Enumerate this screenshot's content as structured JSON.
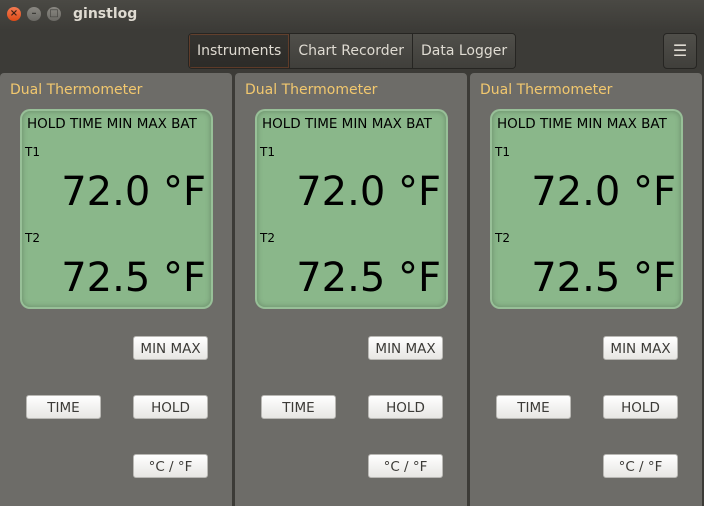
{
  "window": {
    "title": "ginstlog",
    "close_glyph": "×",
    "min_glyph": "–",
    "max_glyph": "□"
  },
  "tabs": [
    {
      "label": "Instruments",
      "active": true
    },
    {
      "label": "Chart Recorder",
      "active": false
    },
    {
      "label": "Data Logger",
      "active": false
    }
  ],
  "menu_icon": "hamburger-menu-icon",
  "menu_glyph": "☰",
  "panels": [
    {
      "title": "Dual Thermometer",
      "flags": "HOLD TIME MIN MAX BAT",
      "t1_label": "T1",
      "t1_value": "72.0 °F",
      "t2_label": "T2",
      "t2_value": "72.5 °F",
      "btn_minmax": "MIN MAX",
      "btn_time": "TIME",
      "btn_hold": "HOLD",
      "btn_unit": "°C / °F"
    },
    {
      "title": "Dual Thermometer",
      "flags": "HOLD TIME MIN MAX BAT",
      "t1_label": "T1",
      "t1_value": "72.0 °F",
      "t2_label": "T2",
      "t2_value": "72.5 °F",
      "btn_minmax": "MIN MAX",
      "btn_time": "TIME",
      "btn_hold": "HOLD",
      "btn_unit": "°C / °F"
    },
    {
      "title": "Dual Thermometer",
      "flags": "HOLD TIME MIN MAX BAT",
      "t1_label": "T1",
      "t1_value": "72.0 °F",
      "t2_label": "T2",
      "t2_value": "72.5 °F",
      "btn_minmax": "MIN MAX",
      "btn_time": "TIME",
      "btn_hold": "HOLD",
      "btn_unit": "°C / °F"
    }
  ],
  "colors": {
    "panel_title": "#f2c86e",
    "lcd_bg": "#8ab78a",
    "background": "#3c3b37"
  }
}
